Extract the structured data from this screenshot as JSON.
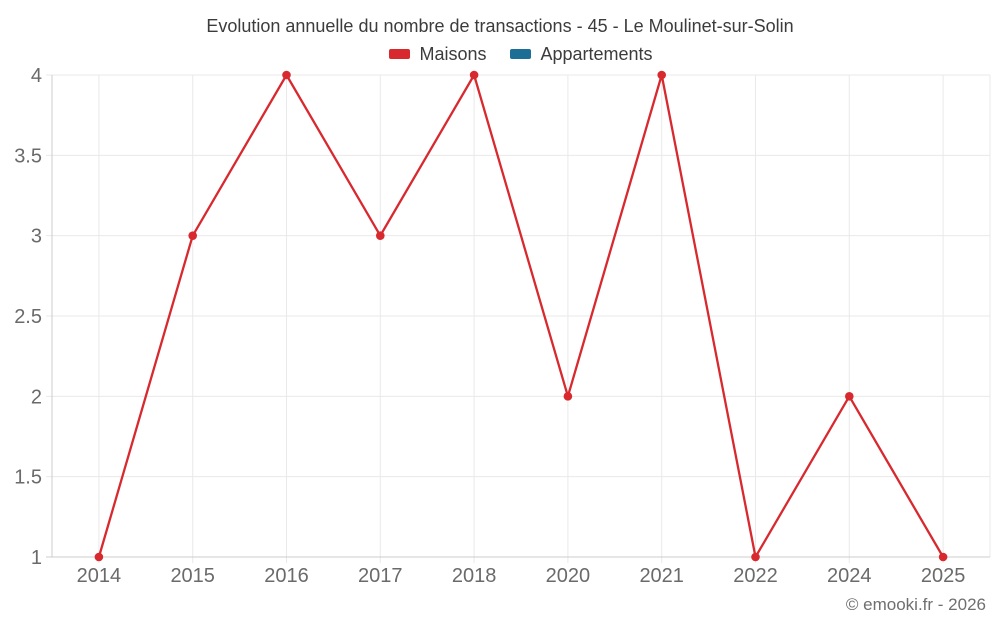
{
  "header": {
    "title": "Evolution annuelle du nombre de transactions - 45 - Le Moulinet-sur-Solin"
  },
  "legend": {
    "items": [
      {
        "label": "Maisons",
        "color": "#d8292f"
      },
      {
        "label": "Appartements",
        "color": "#1c6e96"
      }
    ]
  },
  "footer": {
    "copyright": "© emooki.fr - 2026"
  },
  "chart_data": {
    "type": "line",
    "title": "Evolution annuelle du nombre de transactions - 45 - Le Moulinet-sur-Solin",
    "categories": [
      "2014",
      "2015",
      "2016",
      "2017",
      "2018",
      "2020",
      "2021",
      "2022",
      "2024",
      "2025"
    ],
    "series": [
      {
        "name": "Maisons",
        "color": "#d8292f",
        "values": [
          1,
          3,
          4,
          3,
          4,
          2,
          4,
          1,
          2,
          1
        ]
      },
      {
        "name": "Appartements",
        "color": "#1c6e96",
        "values": []
      }
    ],
    "xlabel": "",
    "ylabel": "",
    "ylim": [
      1,
      4
    ],
    "yticks": [
      1,
      1.5,
      2,
      2.5,
      3,
      3.5,
      4
    ],
    "grid": true,
    "legend_position": "top"
  }
}
